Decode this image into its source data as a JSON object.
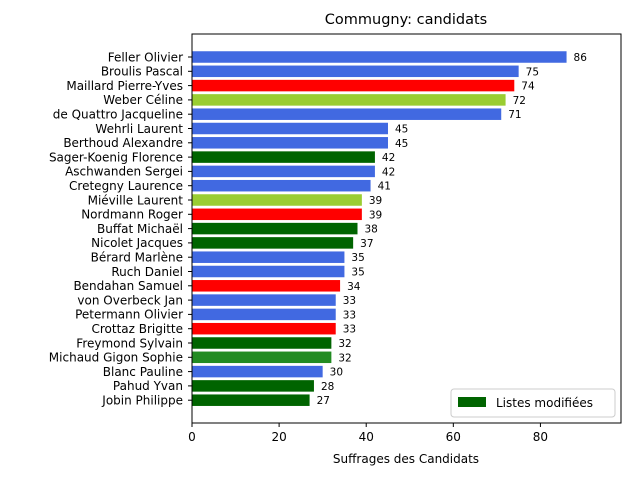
{
  "chart_data": {
    "type": "bar",
    "orientation": "horizontal",
    "title": "Commugny: candidats",
    "xlabel": "Suffrages des Candidats",
    "ylabel": "",
    "xlim": [
      0,
      98.5
    ],
    "xticks": [
      0,
      20,
      40,
      60,
      80
    ],
    "grid": false,
    "legend": {
      "placement": "lower-right",
      "label": "Listes modifiées",
      "color": "#006400"
    },
    "bars": [
      {
        "name": "Feller Olivier",
        "value": 86,
        "color": "#4169e1"
      },
      {
        "name": "Broulis Pascal",
        "value": 75,
        "color": "#4169e1"
      },
      {
        "name": "Maillard Pierre-Yves",
        "value": 74,
        "color": "#ff0000"
      },
      {
        "name": "Weber Céline",
        "value": 72,
        "color": "#9acd32"
      },
      {
        "name": "de Quattro Jacqueline",
        "value": 71,
        "color": "#4169e1"
      },
      {
        "name": "Wehrli Laurent",
        "value": 45,
        "color": "#4169e1"
      },
      {
        "name": "Berthoud Alexandre",
        "value": 45,
        "color": "#4169e1"
      },
      {
        "name": "Sager-Koenig Florence",
        "value": 42,
        "color": "#006400"
      },
      {
        "name": "Aschwanden Sergei",
        "value": 42,
        "color": "#4169e1"
      },
      {
        "name": "Cretegny Laurence",
        "value": 41,
        "color": "#4169e1"
      },
      {
        "name": "Miéville Laurent",
        "value": 39,
        "color": "#9acd32"
      },
      {
        "name": "Nordmann Roger",
        "value": 39,
        "color": "#ff0000"
      },
      {
        "name": "Buffat Michaël",
        "value": 38,
        "color": "#006400"
      },
      {
        "name": "Nicolet Jacques",
        "value": 37,
        "color": "#006400"
      },
      {
        "name": "Bérard Marlène",
        "value": 35,
        "color": "#4169e1"
      },
      {
        "name": "Ruch Daniel",
        "value": 35,
        "color": "#4169e1"
      },
      {
        "name": "Bendahan Samuel",
        "value": 34,
        "color": "#ff0000"
      },
      {
        "name": "von Overbeck Jan",
        "value": 33,
        "color": "#4169e1"
      },
      {
        "name": "Petermann Olivier",
        "value": 33,
        "color": "#4169e1"
      },
      {
        "name": "Crottaz Brigitte",
        "value": 33,
        "color": "#ff0000"
      },
      {
        "name": "Freymond Sylvain",
        "value": 32,
        "color": "#006400"
      },
      {
        "name": "Michaud Gigon Sophie",
        "value": 32,
        "color": "#228b22"
      },
      {
        "name": "Blanc Pauline",
        "value": 30,
        "color": "#4169e1"
      },
      {
        "name": "Pahud Yvan",
        "value": 28,
        "color": "#006400"
      },
      {
        "name": "Jobin Philippe",
        "value": 27,
        "color": "#006400"
      }
    ]
  }
}
